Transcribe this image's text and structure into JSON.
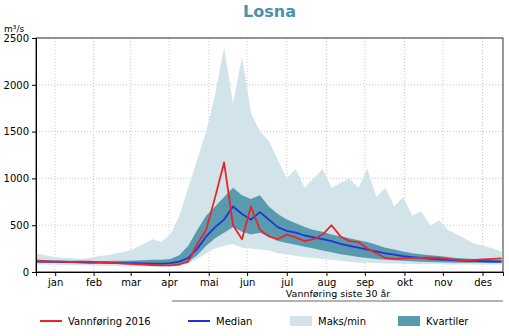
{
  "chart_data": {
    "type": "line",
    "title": "Losna",
    "y_label": "m³/s",
    "legend_title": "Vannføring siste 30 år",
    "legend": "bottom",
    "grid": true,
    "x": [
      1,
      8,
      15,
      22,
      29,
      36,
      43,
      50,
      57,
      64,
      71,
      78,
      85,
      92,
      99,
      106,
      113,
      120,
      127,
      134,
      141,
      148,
      155,
      162,
      169,
      176,
      183,
      190,
      197,
      204,
      211,
      218,
      225,
      232,
      239,
      246,
      253,
      260,
      267,
      274,
      281,
      288,
      295,
      302,
      309,
      316,
      323,
      330,
      337,
      344,
      351,
      358,
      365
    ],
    "xlim": [
      1,
      366
    ],
    "xticks": [
      {
        "value": 16,
        "label": "jan"
      },
      {
        "value": 46,
        "label": "feb"
      },
      {
        "value": 75,
        "label": "mar"
      },
      {
        "value": 105,
        "label": "apr"
      },
      {
        "value": 136,
        "label": "mai"
      },
      {
        "value": 166,
        "label": "jun"
      },
      {
        "value": 197,
        "label": "jul"
      },
      {
        "value": 228,
        "label": "aug"
      },
      {
        "value": 258,
        "label": "sep"
      },
      {
        "value": 289,
        "label": "okt"
      },
      {
        "value": 319,
        "label": "nov"
      },
      {
        "value": 350,
        "label": "des"
      }
    ],
    "ylim": [
      0,
      2500
    ],
    "yticks": [
      0,
      500,
      1000,
      1500,
      2000,
      2500
    ],
    "series": [
      {
        "name": "Vannføring 2016",
        "type": "line",
        "color": "#e8262a",
        "values": [
          120,
          115,
          110,
          110,
          105,
          110,
          110,
          105,
          100,
          95,
          90,
          85,
          80,
          75,
          70,
          70,
          80,
          110,
          300,
          450,
          800,
          1170,
          500,
          350,
          700,
          450,
          380,
          350,
          400,
          370,
          330,
          350,
          400,
          500,
          380,
          330,
          320,
          250,
          200,
          150,
          140,
          145,
          150,
          150,
          155,
          150,
          140,
          130,
          125,
          130,
          135,
          140,
          145
        ]
      },
      {
        "name": "Median",
        "type": "line",
        "color": "#1f35d6",
        "values": [
          110,
          110,
          108,
          105,
          105,
          103,
          100,
          100,
          100,
          98,
          95,
          95,
          92,
          90,
          90,
          95,
          110,
          150,
          250,
          380,
          480,
          560,
          700,
          620,
          560,
          640,
          560,
          480,
          440,
          420,
          390,
          370,
          350,
          330,
          300,
          280,
          260,
          240,
          220,
          200,
          185,
          170,
          160,
          150,
          140,
          135,
          130,
          125,
          120,
          118,
          115,
          112,
          110
        ]
      },
      {
        "name": "Maks/min",
        "type": "band",
        "color": "#d3e3ea",
        "low": [
          80,
          80,
          78,
          75,
          75,
          72,
          70,
          70,
          68,
          65,
          62,
          60,
          58,
          55,
          55,
          58,
          65,
          90,
          140,
          200,
          250,
          280,
          300,
          260,
          250,
          240,
          230,
          200,
          190,
          170,
          160,
          150,
          140,
          130,
          120,
          110,
          100,
          100,
          95,
          90,
          90,
          88,
          85,
          85,
          85,
          82,
          80,
          80,
          80,
          80,
          78,
          78,
          80
        ],
        "high": [
          200,
          180,
          160,
          150,
          150,
          140,
          150,
          170,
          180,
          200,
          220,
          250,
          300,
          350,
          320,
          400,
          600,
          900,
          1200,
          1500,
          1900,
          2400,
          1800,
          2300,
          1700,
          1500,
          1400,
          1200,
          1000,
          1100,
          900,
          1000,
          1100,
          900,
          950,
          1000,
          900,
          1100,
          800,
          900,
          700,
          800,
          600,
          650,
          500,
          550,
          450,
          400,
          350,
          300,
          280,
          250,
          220
        ]
      },
      {
        "name": "Kvartiler",
        "type": "band",
        "color": "#5a9aae",
        "low": [
          100,
          100,
          98,
          95,
          95,
          93,
          90,
          90,
          88,
          85,
          82,
          80,
          78,
          75,
          75,
          78,
          85,
          110,
          180,
          280,
          360,
          420,
          480,
          430,
          400,
          420,
          380,
          330,
          310,
          290,
          270,
          250,
          230,
          210,
          190,
          175,
          160,
          150,
          140,
          130,
          125,
          120,
          115,
          110,
          108,
          105,
          102,
          100,
          100,
          98,
          98,
          98,
          100
        ],
        "high": [
          130,
          128,
          125,
          122,
          120,
          120,
          118,
          118,
          118,
          120,
          120,
          122,
          125,
          130,
          130,
          140,
          180,
          280,
          450,
          600,
          700,
          800,
          900,
          820,
          780,
          820,
          700,
          620,
          560,
          520,
          480,
          450,
          430,
          400,
          380,
          360,
          340,
          320,
          290,
          260,
          240,
          220,
          200,
          190,
          180,
          170,
          160,
          150,
          145,
          140,
          135,
          132,
          130
        ]
      }
    ]
  }
}
